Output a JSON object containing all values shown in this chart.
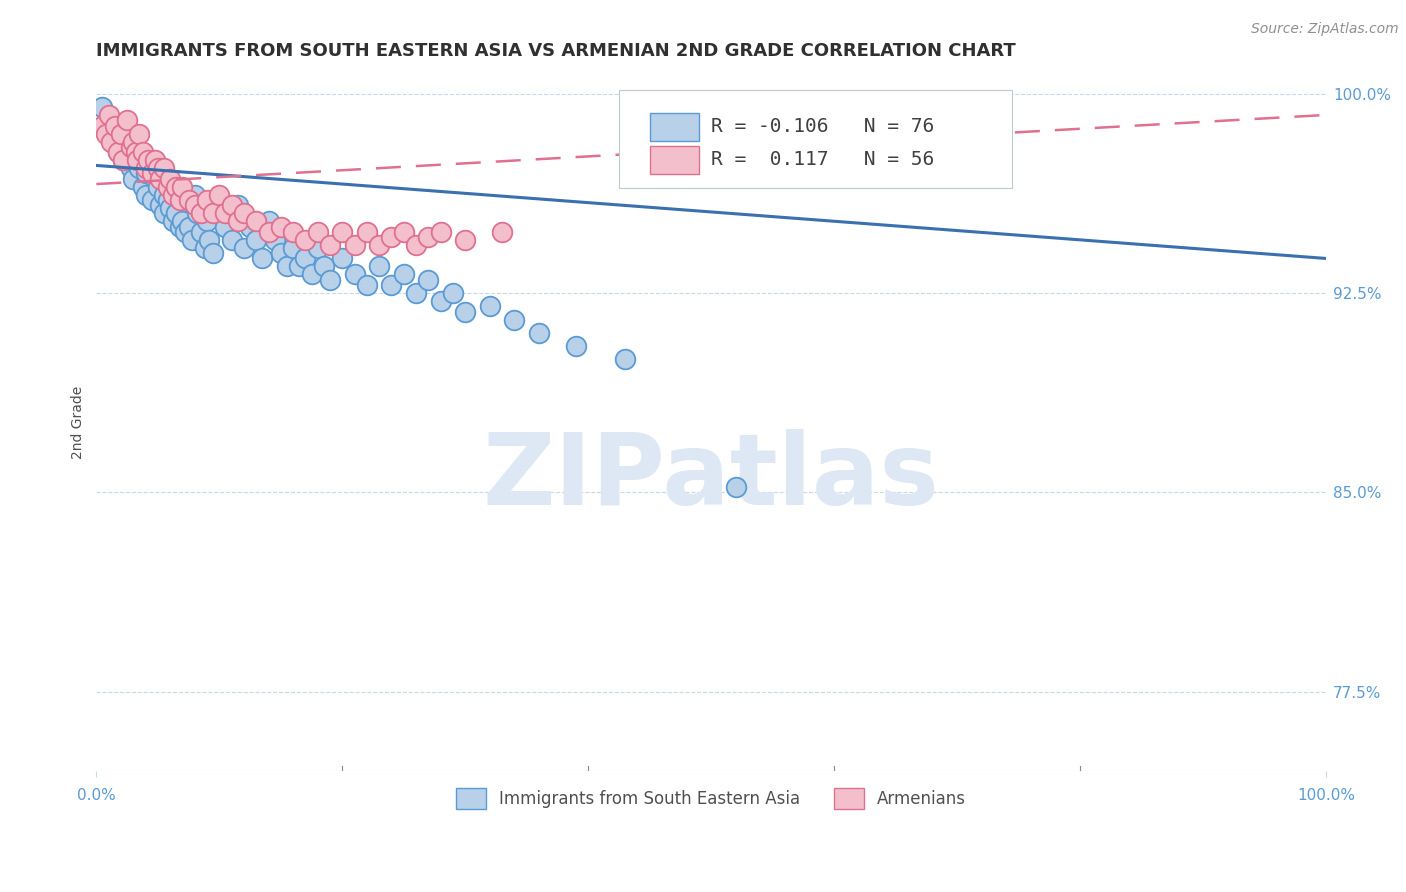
{
  "title": "IMMIGRANTS FROM SOUTH EASTERN ASIA VS ARMENIAN 2ND GRADE CORRELATION CHART",
  "source_text": "Source: ZipAtlas.com",
  "ylabel": "2nd Grade",
  "watermark": "ZIPatlas",
  "xlim": [
    0.0,
    1.0
  ],
  "ylim": [
    0.745,
    1.008
  ],
  "yticks": [
    1.0,
    0.925,
    0.85,
    0.775
  ],
  "ytick_labels": [
    "100.0%",
    "92.5%",
    "85.0%",
    "77.5%"
  ],
  "xticks": [
    0.0,
    1.0
  ],
  "xtick_labels": [
    "0.0%",
    "100.0%"
  ],
  "blue_color": "#b8d0e8",
  "blue_edge_color": "#5b9bd5",
  "pink_color": "#f4bfcc",
  "pink_edge_color": "#e07090",
  "trend_blue_color": "#3a70b0",
  "trend_pink_color": "#e07090",
  "title_color": "#303030",
  "axis_color": "#5b9bd5",
  "grid_color": "#c8d8e8",
  "blue_scatter_x": [
    0.005,
    0.008,
    0.01,
    0.012,
    0.015,
    0.018,
    0.02,
    0.022,
    0.025,
    0.028,
    0.03,
    0.03,
    0.035,
    0.038,
    0.04,
    0.04,
    0.042,
    0.045,
    0.048,
    0.05,
    0.052,
    0.055,
    0.055,
    0.058,
    0.06,
    0.062,
    0.065,
    0.068,
    0.07,
    0.072,
    0.075,
    0.078,
    0.08,
    0.082,
    0.085,
    0.088,
    0.09,
    0.092,
    0.095,
    0.098,
    0.1,
    0.105,
    0.11,
    0.115,
    0.12,
    0.125,
    0.13,
    0.135,
    0.14,
    0.145,
    0.15,
    0.155,
    0.16,
    0.165,
    0.17,
    0.175,
    0.18,
    0.185,
    0.19,
    0.2,
    0.21,
    0.22,
    0.23,
    0.24,
    0.25,
    0.26,
    0.27,
    0.28,
    0.29,
    0.3,
    0.32,
    0.34,
    0.36,
    0.39,
    0.43,
    0.52
  ],
  "blue_scatter_y": [
    0.995,
    0.988,
    0.99,
    0.985,
    0.983,
    0.978,
    0.98,
    0.975,
    0.985,
    0.972,
    0.975,
    0.968,
    0.972,
    0.965,
    0.97,
    0.962,
    0.975,
    0.96,
    0.968,
    0.965,
    0.958,
    0.962,
    0.955,
    0.96,
    0.957,
    0.952,
    0.955,
    0.95,
    0.952,
    0.948,
    0.95,
    0.945,
    0.962,
    0.955,
    0.948,
    0.942,
    0.952,
    0.945,
    0.94,
    0.96,
    0.955,
    0.95,
    0.945,
    0.958,
    0.942,
    0.95,
    0.945,
    0.938,
    0.952,
    0.945,
    0.94,
    0.935,
    0.942,
    0.935,
    0.938,
    0.932,
    0.942,
    0.935,
    0.93,
    0.938,
    0.932,
    0.928,
    0.935,
    0.928,
    0.932,
    0.925,
    0.93,
    0.922,
    0.925,
    0.918,
    0.92,
    0.915,
    0.91,
    0.905,
    0.9,
    0.852
  ],
  "pink_scatter_x": [
    0.005,
    0.008,
    0.01,
    0.012,
    0.015,
    0.018,
    0.02,
    0.022,
    0.025,
    0.028,
    0.03,
    0.032,
    0.033,
    0.035,
    0.038,
    0.04,
    0.042,
    0.045,
    0.048,
    0.05,
    0.052,
    0.055,
    0.058,
    0.06,
    0.062,
    0.065,
    0.068,
    0.07,
    0.075,
    0.08,
    0.085,
    0.09,
    0.095,
    0.1,
    0.105,
    0.11,
    0.115,
    0.12,
    0.13,
    0.14,
    0.15,
    0.16,
    0.17,
    0.18,
    0.19,
    0.2,
    0.21,
    0.22,
    0.23,
    0.24,
    0.25,
    0.26,
    0.27,
    0.28,
    0.3,
    0.33
  ],
  "pink_scatter_y": [
    0.988,
    0.985,
    0.992,
    0.982,
    0.988,
    0.978,
    0.985,
    0.975,
    0.99,
    0.98,
    0.982,
    0.978,
    0.975,
    0.985,
    0.978,
    0.972,
    0.975,
    0.97,
    0.975,
    0.972,
    0.968,
    0.972,
    0.965,
    0.968,
    0.962,
    0.965,
    0.96,
    0.965,
    0.96,
    0.958,
    0.955,
    0.96,
    0.955,
    0.962,
    0.955,
    0.958,
    0.952,
    0.955,
    0.952,
    0.948,
    0.95,
    0.948,
    0.945,
    0.948,
    0.943,
    0.948,
    0.943,
    0.948,
    0.943,
    0.946,
    0.948,
    0.943,
    0.946,
    0.948,
    0.945,
    0.948
  ],
  "blue_trend_y_start": 0.973,
  "blue_trend_y_end": 0.938,
  "pink_trend_y_start": 0.966,
  "pink_trend_y_end": 0.992,
  "legend_r1": "R = -0.106",
  "legend_n1": "N = 76",
  "legend_r2": "R =  0.117",
  "legend_n2": "N = 56",
  "marker_size": 200,
  "title_fontsize": 13,
  "axis_label_fontsize": 10,
  "tick_fontsize": 11,
  "legend_fontsize": 14,
  "watermark_fontsize": 72,
  "watermark_color": "#dde8f4",
  "source_fontsize": 10,
  "source_color": "#909090"
}
